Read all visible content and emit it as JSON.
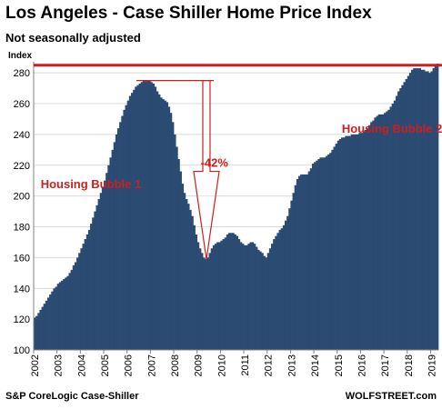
{
  "chart_data": {
    "type": "bar",
    "title": "Los Angeles - Case Shiller Home Price Index",
    "subtitle": "Not seasonally adjusted",
    "ylabel": "Index",
    "xlabel": "",
    "ylim": [
      100,
      286
    ],
    "yticks": [
      100,
      120,
      140,
      160,
      180,
      200,
      220,
      240,
      260,
      280
    ],
    "xtick_labels": [
      "2002",
      "2003",
      "2004",
      "2005",
      "2006",
      "2007",
      "2008",
      "2009",
      "2010",
      "2011",
      "2012",
      "2013",
      "2014",
      "2015",
      "2016",
      "2017",
      "2018",
      "2019"
    ],
    "start_year": 2002,
    "reference_line": 285,
    "grid": true,
    "bar_color": "#2b4b73",
    "accent_color": "#cc1f1f",
    "annotations": [
      {
        "label": "Housing Bubble 1",
        "year": 2002.3,
        "value": 205
      },
      {
        "label": "Housing Bubble 2",
        "year": 2015.2,
        "value": 241
      },
      {
        "label": "-42%",
        "year": 2009.15,
        "value": 219
      }
    ],
    "drop": {
      "from_value": 275,
      "to_value": 160,
      "year": 2009.4,
      "start_year": 2006.4
    },
    "series": [
      {
        "values": [
          121,
          122,
          124,
          126,
          128,
          130,
          132,
          134,
          136,
          138,
          140,
          141,
          143,
          144,
          145,
          146,
          147,
          148,
          150,
          152,
          155,
          157,
          160,
          163,
          166,
          169,
          172,
          175,
          178,
          182,
          186,
          190,
          194,
          198,
          202,
          206,
          210,
          215,
          220,
          225,
          230,
          235,
          240,
          244,
          248,
          252,
          256,
          259,
          262,
          265,
          267,
          269,
          271,
          272,
          273,
          274,
          275,
          275,
          275,
          275,
          274,
          273,
          271,
          268,
          266,
          264,
          263,
          262,
          261,
          258,
          254,
          248,
          240,
          232,
          224,
          216,
          208,
          202,
          198,
          195,
          191,
          187,
          181,
          175,
          170,
          166,
          163,
          160,
          159,
          160,
          163,
          166,
          168,
          169,
          170,
          170,
          171,
          172,
          173,
          175,
          176,
          176,
          176,
          175,
          174,
          172,
          170,
          169,
          168,
          168,
          169,
          170,
          170,
          169,
          167,
          165,
          164,
          163,
          161,
          160,
          163,
          166,
          169,
          172,
          174,
          176,
          178,
          179,
          181,
          184,
          187,
          192,
          197,
          202,
          207,
          211,
          213,
          214,
          214,
          214,
          214,
          216,
          218,
          221,
          222,
          223,
          224,
          225,
          225,
          225,
          226,
          227,
          228,
          230,
          232,
          234,
          236,
          237,
          238,
          238,
          239,
          239,
          239,
          240,
          240,
          240,
          240,
          241,
          241,
          242,
          243,
          244,
          246,
          248,
          249,
          251,
          252,
          253,
          253,
          253,
          254,
          255,
          256,
          258,
          260,
          262,
          265,
          268,
          270,
          272,
          274,
          276,
          278,
          280,
          282,
          283,
          283,
          283,
          283,
          282,
          282,
          281,
          281,
          280,
          281,
          283,
          285,
          286
        ]
      }
    ]
  },
  "footer": {
    "source": "S&P CoreLogic Case-Shiller",
    "brand": "WOLFSTREET.com"
  }
}
